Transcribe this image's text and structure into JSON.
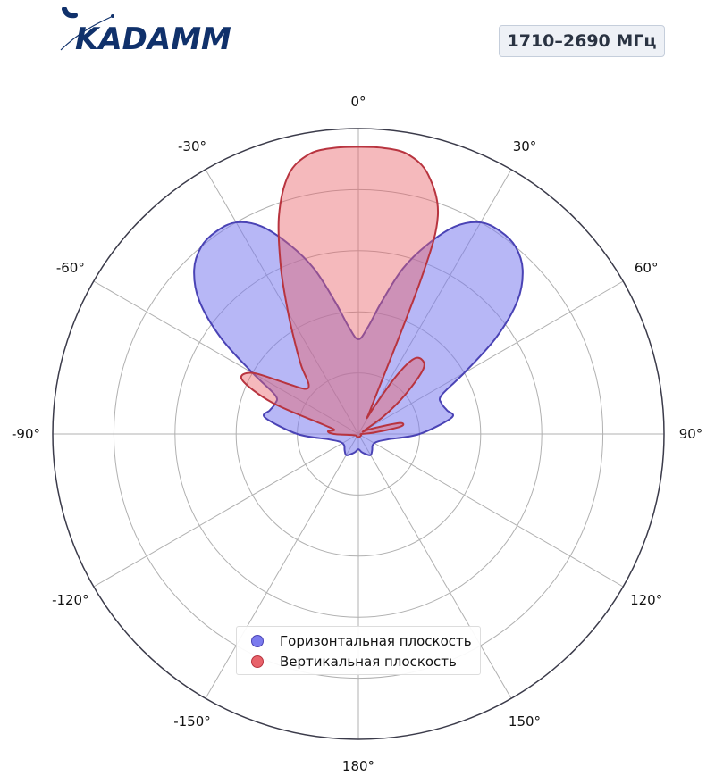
{
  "brand": {
    "logo_text": "KADAMM",
    "color": "#10316b"
  },
  "band": {
    "label": "1710–2690 МГц"
  },
  "colors": {
    "horizontal_fill": "#7b7bee",
    "horizontal_stroke": "#4a43b5",
    "vertical_fill": "#e8636b",
    "vertical_stroke": "#b8343f",
    "grid": "#b0b0b0",
    "outer_ring": "#3b3b4a"
  },
  "chart_data": {
    "type": "polar-area",
    "angle_ticks": [
      "0°",
      "30°",
      "60°",
      "90°",
      "120°",
      "150°",
      "180°",
      "-150°",
      "-120°",
      "-90°",
      "-60°",
      "-30°"
    ],
    "angle_tick_values": [
      0,
      30,
      60,
      90,
      120,
      150,
      180,
      -150,
      -120,
      -90,
      -60,
      -30
    ],
    "angle_direction": "clockwise",
    "zero_location": "top",
    "radial_range": [
      0,
      1
    ],
    "radial_grid": [
      0.2,
      0.4,
      0.6,
      0.8
    ],
    "radial_tick_labels": false,
    "grid": true,
    "legend_placement": "lower-center",
    "series": [
      {
        "name": "Горизонтальная плоскость",
        "angles": [
          -180,
          -170,
          -160,
          -150,
          -140,
          -130,
          -120,
          -110,
          -100,
          -90,
          -80,
          -75,
          -70,
          -65,
          -60,
          -55,
          -50,
          -45,
          -40,
          -35,
          -30,
          -25,
          -20,
          -15,
          -10,
          -5,
          0,
          5,
          10,
          15,
          20,
          25,
          30,
          35,
          40,
          45,
          50,
          55,
          60,
          65,
          70,
          75,
          80,
          90,
          100,
          110,
          120,
          130,
          140,
          150,
          160,
          170,
          180
        ],
        "values": [
          0.05,
          0.06,
          0.07,
          0.08,
          0.07,
          0.06,
          0.06,
          0.07,
          0.1,
          0.2,
          0.31,
          0.3,
          0.29,
          0.3,
          0.4,
          0.55,
          0.68,
          0.76,
          0.8,
          0.81,
          0.8,
          0.75,
          0.66,
          0.56,
          0.44,
          0.35,
          0.31,
          0.35,
          0.44,
          0.56,
          0.66,
          0.75,
          0.8,
          0.81,
          0.8,
          0.76,
          0.68,
          0.55,
          0.4,
          0.3,
          0.29,
          0.3,
          0.31,
          0.2,
          0.1,
          0.07,
          0.06,
          0.06,
          0.07,
          0.08,
          0.07,
          0.06,
          0.05
        ]
      },
      {
        "name": "Вертикальная плоскость",
        "angles": [
          -180,
          -150,
          -120,
          -100,
          -90,
          -85,
          -80,
          -75,
          -70,
          -65,
          -60,
          -55,
          -50,
          -45,
          -40,
          -35,
          -30,
          -25,
          -20,
          -15,
          -10,
          -5,
          0,
          5,
          10,
          15,
          20,
          22,
          25,
          28,
          30,
          33,
          36,
          40,
          45,
          50,
          55,
          60,
          65,
          70,
          75,
          80,
          85,
          90,
          100,
          120,
          150,
          180
        ],
        "values": [
          0.01,
          0.01,
          0.01,
          0.02,
          0.08,
          0.1,
          0.08,
          0.12,
          0.3,
          0.42,
          0.4,
          0.29,
          0.23,
          0.23,
          0.29,
          0.36,
          0.46,
          0.6,
          0.76,
          0.88,
          0.93,
          0.94,
          0.94,
          0.94,
          0.93,
          0.88,
          0.76,
          0.55,
          0.12,
          0.06,
          0.1,
          0.22,
          0.3,
          0.32,
          0.3,
          0.2,
          0.1,
          0.02,
          0.03,
          0.06,
          0.14,
          0.14,
          0.05,
          0.01,
          0.01,
          0.01,
          0.01,
          0.01
        ]
      }
    ]
  }
}
